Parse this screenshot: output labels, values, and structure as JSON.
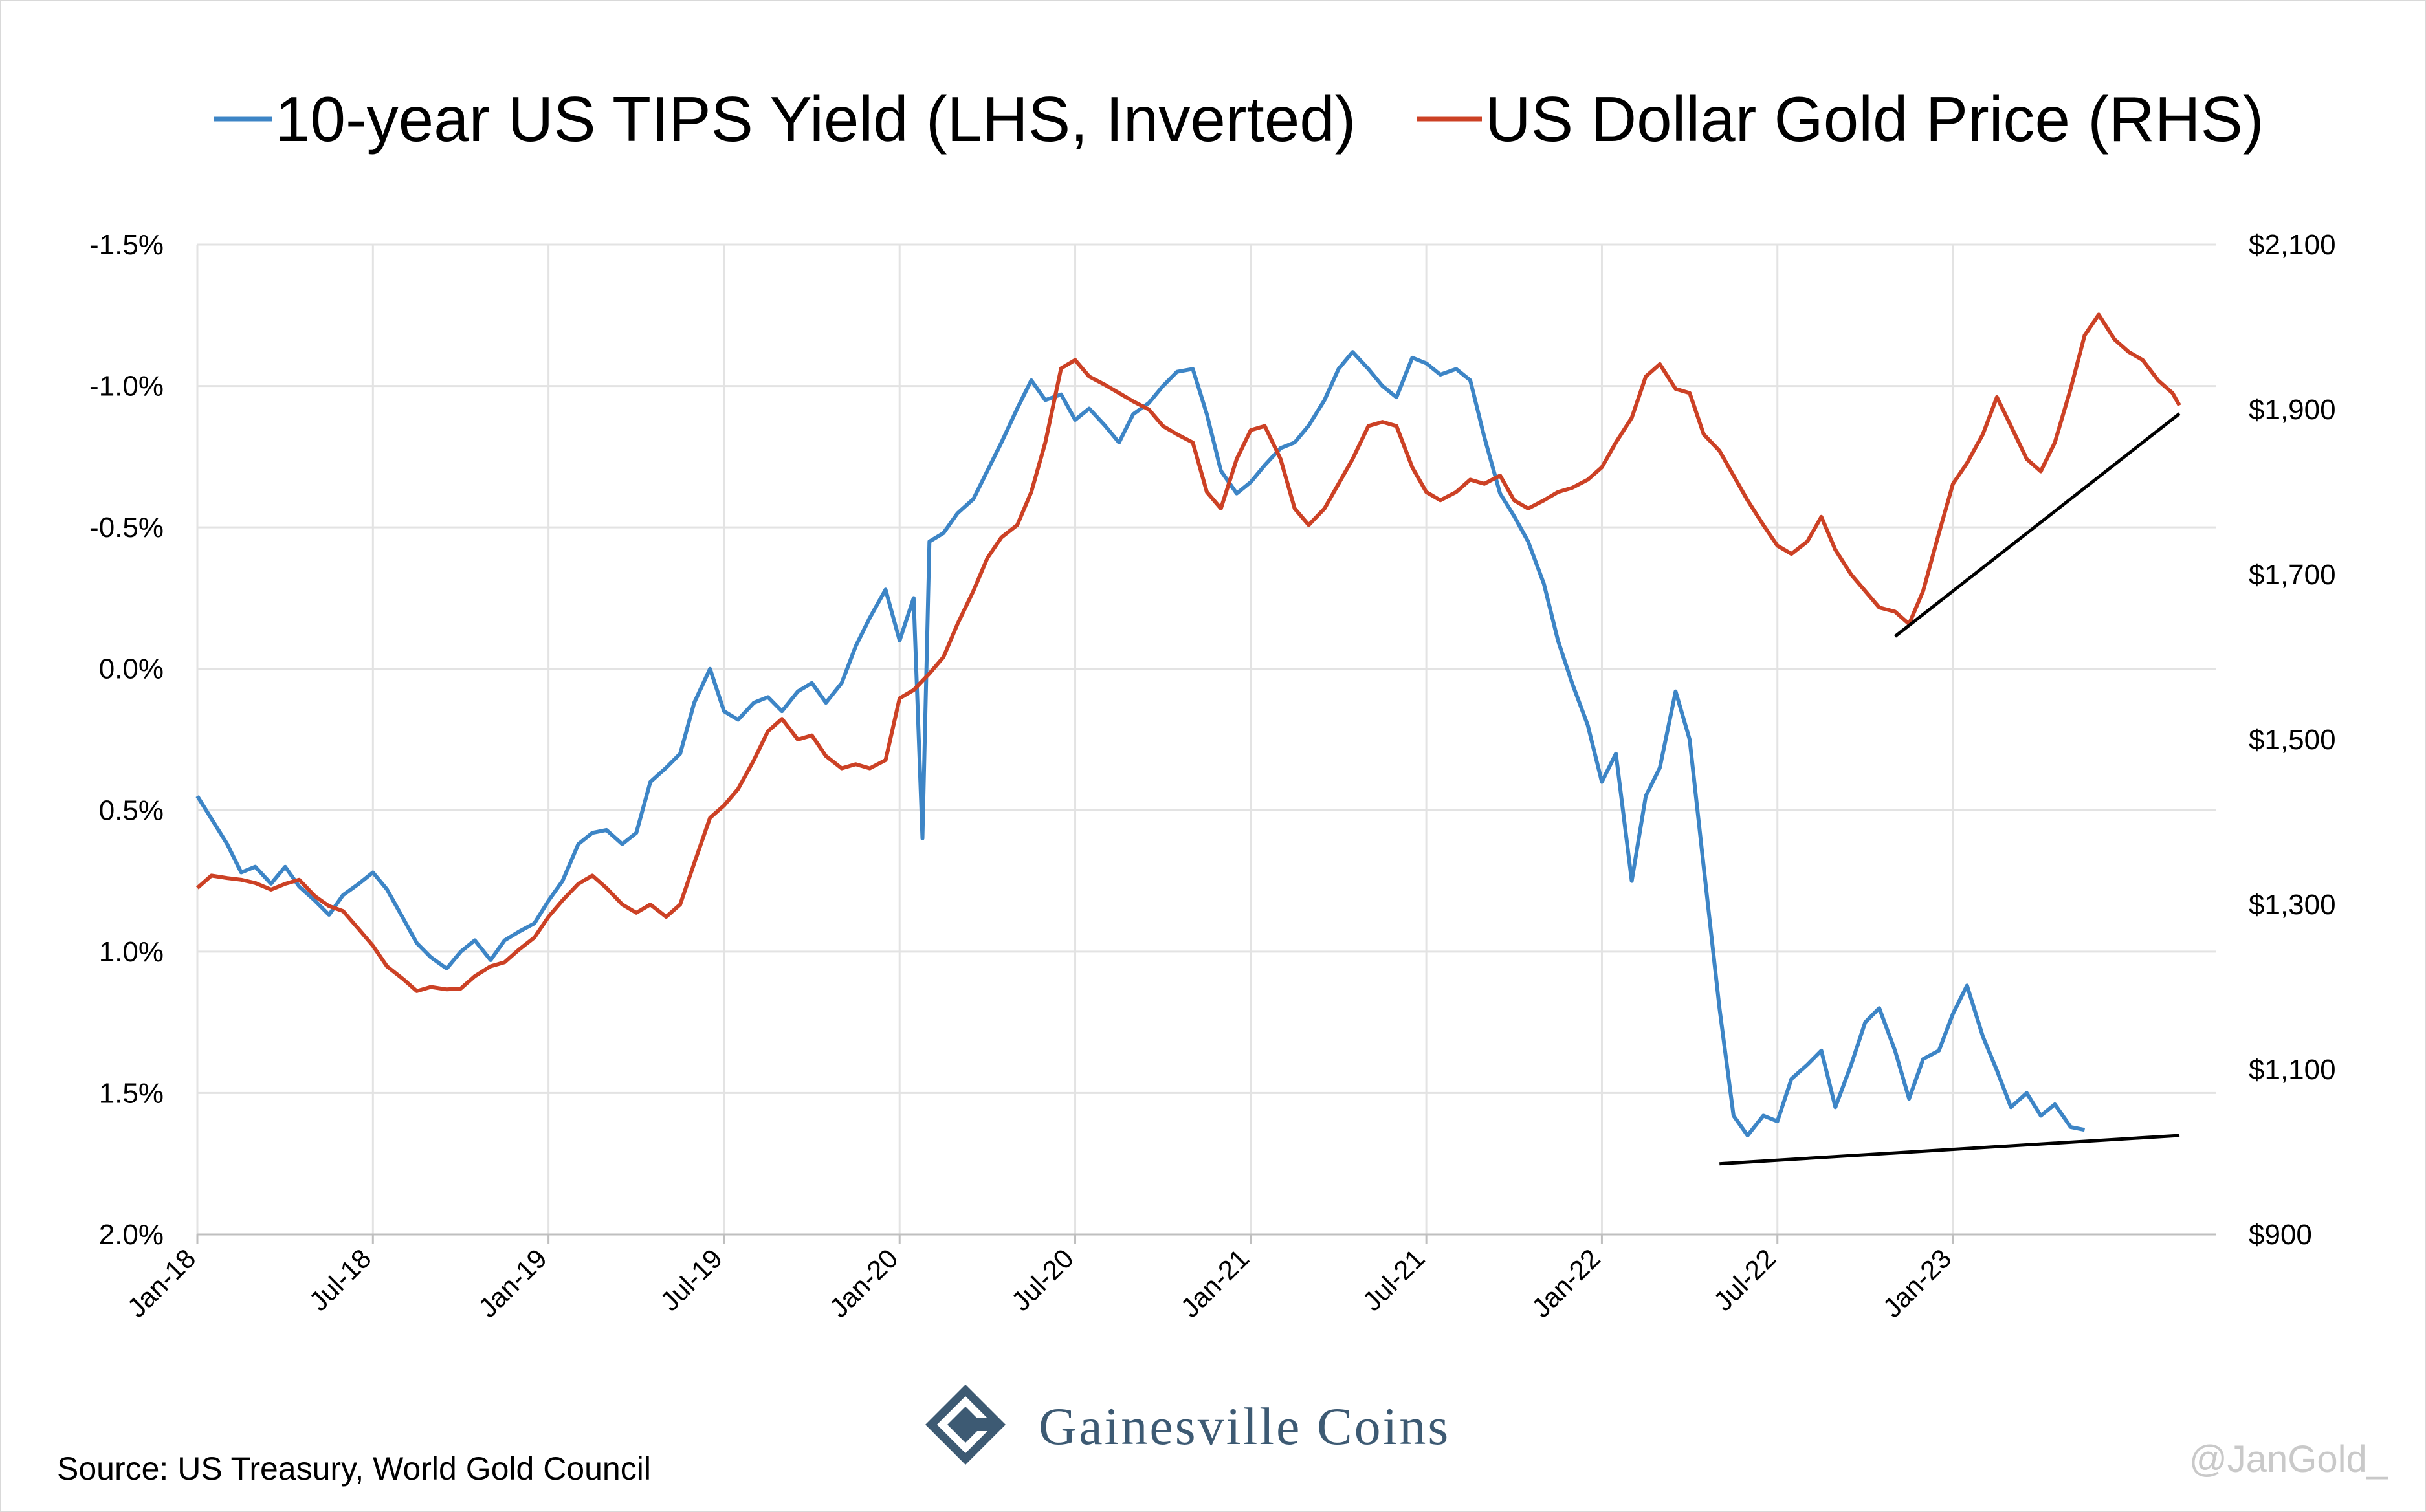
{
  "chart_data": {
    "type": "line",
    "title": "",
    "x": [
      "Jan-18",
      "Jul-18",
      "Jan-19",
      "Jul-19",
      "Jan-20",
      "Jul-20",
      "Jan-21",
      "Jul-21",
      "Jan-22",
      "Jul-22",
      "Jan-23"
    ],
    "x_tick_labels": [
      "Jan-18",
      "Jul-18",
      "Jan-19",
      "Jul-19",
      "Jan-20",
      "Jul-20",
      "Jan-21",
      "Jul-21",
      "Jan-22",
      "Jul-22",
      "Jan-23"
    ],
    "x_range": [
      "Jan-18",
      "Oct-23"
    ],
    "y_left": {
      "label": "10-year US TIPS Yield (LHS, Inverted)",
      "inverted": true,
      "ylim": [
        -1.5,
        2.0
      ],
      "tick_labels": [
        "-1.5%",
        "-1.0%",
        "-0.5%",
        "0.0%",
        "0.5%",
        "1.0%",
        "1.5%",
        "2.0%"
      ],
      "tick_values": [
        -1.5,
        -1.0,
        -0.5,
        0.0,
        0.5,
        1.0,
        1.5,
        2.0
      ]
    },
    "y_right": {
      "label": "US Dollar Gold Price (RHS)",
      "ylim": [
        900,
        2100
      ],
      "tick_labels": [
        "$2,100",
        "$1,900",
        "$1,700",
        "$1,500",
        "$1,300",
        "$1,100",
        "$900"
      ],
      "tick_values": [
        2100,
        1900,
        1700,
        1500,
        1300,
        1100,
        900
      ]
    },
    "grid": true,
    "legend_position": "top",
    "series": [
      {
        "name": "10-year US TIPS Yield (LHS, Inverted)",
        "axis": "left",
        "color": "#3d85c6",
        "points": [
          [
            0.0,
            0.45
          ],
          [
            0.08,
            0.53
          ],
          [
            0.17,
            0.62
          ],
          [
            0.25,
            0.72
          ],
          [
            0.33,
            0.7
          ],
          [
            0.42,
            0.76
          ],
          [
            0.5,
            0.7
          ],
          [
            0.58,
            0.77
          ],
          [
            0.67,
            0.82
          ],
          [
            0.75,
            0.87
          ],
          [
            0.83,
            0.8
          ],
          [
            0.92,
            0.76
          ],
          [
            1.0,
            0.72
          ],
          [
            1.08,
            0.78
          ],
          [
            1.17,
            0.88
          ],
          [
            1.25,
            0.97
          ],
          [
            1.33,
            1.02
          ],
          [
            1.42,
            1.06
          ],
          [
            1.5,
            1.0
          ],
          [
            1.58,
            0.96
          ],
          [
            1.67,
            1.03
          ],
          [
            1.75,
            0.96
          ],
          [
            1.83,
            0.93
          ],
          [
            1.92,
            0.9
          ],
          [
            2.0,
            0.82
          ],
          [
            2.08,
            0.75
          ],
          [
            2.17,
            0.62
          ],
          [
            2.25,
            0.58
          ],
          [
            2.33,
            0.57
          ],
          [
            2.42,
            0.62
          ],
          [
            2.5,
            0.58
          ],
          [
            2.58,
            0.4
          ],
          [
            2.67,
            0.35
          ],
          [
            2.75,
            0.3
          ],
          [
            2.83,
            0.12
          ],
          [
            2.92,
            0.0
          ],
          [
            3.0,
            0.15
          ],
          [
            3.08,
            0.18
          ],
          [
            3.17,
            0.12
          ],
          [
            3.25,
            0.1
          ],
          [
            3.33,
            0.15
          ],
          [
            3.42,
            0.08
          ],
          [
            3.5,
            0.05
          ],
          [
            3.58,
            0.12
          ],
          [
            3.67,
            0.05
          ],
          [
            3.75,
            -0.08
          ],
          [
            3.83,
            -0.18
          ],
          [
            3.92,
            -0.28
          ],
          [
            4.0,
            -0.1
          ],
          [
            4.08,
            -0.25
          ],
          [
            4.13,
            0.6
          ],
          [
            4.17,
            -0.45
          ],
          [
            4.25,
            -0.48
          ],
          [
            4.33,
            -0.55
          ],
          [
            4.42,
            -0.6
          ],
          [
            4.5,
            -0.7
          ],
          [
            4.58,
            -0.8
          ],
          [
            4.67,
            -0.92
          ],
          [
            4.75,
            -1.02
          ],
          [
            4.83,
            -0.95
          ],
          [
            4.92,
            -0.97
          ],
          [
            5.0,
            -0.88
          ],
          [
            5.08,
            -0.92
          ],
          [
            5.17,
            -0.86
          ],
          [
            5.25,
            -0.8
          ],
          [
            5.33,
            -0.9
          ],
          [
            5.42,
            -0.94
          ],
          [
            5.5,
            -1.0
          ],
          [
            5.58,
            -1.05
          ],
          [
            5.67,
            -1.06
          ],
          [
            5.75,
            -0.9
          ],
          [
            5.83,
            -0.7
          ],
          [
            5.92,
            -0.62
          ],
          [
            6.0,
            -0.66
          ],
          [
            6.08,
            -0.72
          ],
          [
            6.17,
            -0.78
          ],
          [
            6.25,
            -0.8
          ],
          [
            6.33,
            -0.86
          ],
          [
            6.42,
            -0.95
          ],
          [
            6.5,
            -1.06
          ],
          [
            6.58,
            -1.12
          ],
          [
            6.67,
            -1.06
          ],
          [
            6.75,
            -1.0
          ],
          [
            6.83,
            -0.96
          ],
          [
            6.92,
            -1.1
          ],
          [
            7.0,
            -1.08
          ],
          [
            7.08,
            -1.04
          ],
          [
            7.17,
            -1.06
          ],
          [
            7.25,
            -1.02
          ],
          [
            7.33,
            -0.82
          ],
          [
            7.42,
            -0.62
          ],
          [
            7.5,
            -0.54
          ],
          [
            7.58,
            -0.45
          ],
          [
            7.67,
            -0.3
          ],
          [
            7.75,
            -0.1
          ],
          [
            7.83,
            0.05
          ],
          [
            7.92,
            0.2
          ],
          [
            8.0,
            0.4
          ],
          [
            8.08,
            0.3
          ],
          [
            8.17,
            0.75
          ],
          [
            8.25,
            0.45
          ],
          [
            8.33,
            0.35
          ],
          [
            8.42,
            0.08
          ],
          [
            8.5,
            0.25
          ],
          [
            8.58,
            0.7
          ],
          [
            8.67,
            1.2
          ],
          [
            8.75,
            1.58
          ],
          [
            8.83,
            1.65
          ],
          [
            8.92,
            1.58
          ],
          [
            9.0,
            1.6
          ],
          [
            9.08,
            1.45
          ],
          [
            9.17,
            1.4
          ],
          [
            9.25,
            1.35
          ],
          [
            9.33,
            1.55
          ],
          [
            9.42,
            1.4
          ],
          [
            9.5,
            1.25
          ],
          [
            9.58,
            1.2
          ],
          [
            9.67,
            1.35
          ],
          [
            9.75,
            1.52
          ],
          [
            9.83,
            1.38
          ],
          [
            9.92,
            1.35
          ],
          [
            10.0,
            1.22
          ],
          [
            10.08,
            1.12
          ],
          [
            10.17,
            1.3
          ],
          [
            10.25,
            1.42
          ],
          [
            10.33,
            1.55
          ],
          [
            10.42,
            1.5
          ],
          [
            10.5,
            1.58
          ],
          [
            10.58,
            1.54
          ],
          [
            10.67,
            1.62
          ],
          [
            10.75,
            1.63
          ]
        ]
      },
      {
        "name": "US Dollar Gold Price (RHS)",
        "axis": "right",
        "color": "#cc4125",
        "points": [
          [
            0.0,
            1320
          ],
          [
            0.08,
            1335
          ],
          [
            0.17,
            1332
          ],
          [
            0.25,
            1330
          ],
          [
            0.33,
            1326
          ],
          [
            0.42,
            1318
          ],
          [
            0.5,
            1325
          ],
          [
            0.58,
            1330
          ],
          [
            0.67,
            1310
          ],
          [
            0.75,
            1298
          ],
          [
            0.83,
            1292
          ],
          [
            0.92,
            1270
          ],
          [
            1.0,
            1250
          ],
          [
            1.08,
            1225
          ],
          [
            1.17,
            1210
          ],
          [
            1.25,
            1195
          ],
          [
            1.33,
            1200
          ],
          [
            1.42,
            1197
          ],
          [
            1.5,
            1198
          ],
          [
            1.58,
            1213
          ],
          [
            1.67,
            1225
          ],
          [
            1.75,
            1230
          ],
          [
            1.83,
            1245
          ],
          [
            1.92,
            1260
          ],
          [
            2.0,
            1285
          ],
          [
            2.08,
            1305
          ],
          [
            2.17,
            1325
          ],
          [
            2.25,
            1335
          ],
          [
            2.33,
            1320
          ],
          [
            2.42,
            1300
          ],
          [
            2.5,
            1290
          ],
          [
            2.58,
            1300
          ],
          [
            2.67,
            1285
          ],
          [
            2.75,
            1300
          ],
          [
            2.83,
            1350
          ],
          [
            2.92,
            1405
          ],
          [
            3.0,
            1420
          ],
          [
            3.08,
            1440
          ],
          [
            3.17,
            1475
          ],
          [
            3.25,
            1510
          ],
          [
            3.33,
            1525
          ],
          [
            3.42,
            1500
          ],
          [
            3.5,
            1505
          ],
          [
            3.58,
            1480
          ],
          [
            3.67,
            1465
          ],
          [
            3.75,
            1470
          ],
          [
            3.83,
            1465
          ],
          [
            3.92,
            1475
          ],
          [
            4.0,
            1550
          ],
          [
            4.08,
            1560
          ],
          [
            4.17,
            1580
          ],
          [
            4.25,
            1600
          ],
          [
            4.33,
            1640
          ],
          [
            4.42,
            1680
          ],
          [
            4.5,
            1720
          ],
          [
            4.58,
            1745
          ],
          [
            4.67,
            1760
          ],
          [
            4.75,
            1800
          ],
          [
            4.83,
            1860
          ],
          [
            4.92,
            1950
          ],
          [
            5.0,
            1960
          ],
          [
            5.08,
            1940
          ],
          [
            5.17,
            1930
          ],
          [
            5.25,
            1920
          ],
          [
            5.33,
            1910
          ],
          [
            5.42,
            1900
          ],
          [
            5.5,
            1880
          ],
          [
            5.58,
            1870
          ],
          [
            5.67,
            1860
          ],
          [
            5.75,
            1800
          ],
          [
            5.83,
            1780
          ],
          [
            5.92,
            1840
          ],
          [
            6.0,
            1875
          ],
          [
            6.08,
            1880
          ],
          [
            6.17,
            1840
          ],
          [
            6.25,
            1780
          ],
          [
            6.33,
            1760
          ],
          [
            6.42,
            1780
          ],
          [
            6.5,
            1810
          ],
          [
            6.58,
            1840
          ],
          [
            6.67,
            1880
          ],
          [
            6.75,
            1885
          ],
          [
            6.83,
            1880
          ],
          [
            6.92,
            1830
          ],
          [
            7.0,
            1800
          ],
          [
            7.08,
            1790
          ],
          [
            7.17,
            1800
          ],
          [
            7.25,
            1815
          ],
          [
            7.33,
            1810
          ],
          [
            7.42,
            1820
          ],
          [
            7.5,
            1790
          ],
          [
            7.58,
            1780
          ],
          [
            7.67,
            1790
          ],
          [
            7.75,
            1800
          ],
          [
            7.83,
            1805
          ],
          [
            7.92,
            1815
          ],
          [
            8.0,
            1830
          ],
          [
            8.08,
            1860
          ],
          [
            8.17,
            1890
          ],
          [
            8.25,
            1940
          ],
          [
            8.33,
            1955
          ],
          [
            8.42,
            1925
          ],
          [
            8.5,
            1920
          ],
          [
            8.58,
            1870
          ],
          [
            8.67,
            1850
          ],
          [
            8.75,
            1820
          ],
          [
            8.83,
            1790
          ],
          [
            8.92,
            1760
          ],
          [
            9.0,
            1735
          ],
          [
            9.08,
            1725
          ],
          [
            9.17,
            1740
          ],
          [
            9.25,
            1770
          ],
          [
            9.33,
            1730
          ],
          [
            9.42,
            1700
          ],
          [
            9.5,
            1680
          ],
          [
            9.58,
            1660
          ],
          [
            9.67,
            1655
          ],
          [
            9.75,
            1640
          ],
          [
            9.83,
            1680
          ],
          [
            9.92,
            1750
          ],
          [
            10.0,
            1810
          ],
          [
            10.08,
            1835
          ],
          [
            10.17,
            1870
          ],
          [
            10.25,
            1915
          ],
          [
            10.33,
            1880
          ],
          [
            10.42,
            1840
          ],
          [
            10.5,
            1825
          ],
          [
            10.58,
            1860
          ],
          [
            10.67,
            1925
          ],
          [
            10.75,
            1990
          ],
          [
            10.83,
            2015
          ],
          [
            10.92,
            1985
          ],
          [
            11.0,
            1970
          ],
          [
            11.08,
            1960
          ],
          [
            11.17,
            1935
          ],
          [
            11.25,
            1920
          ],
          [
            11.29,
            1905
          ]
        ]
      }
    ],
    "annotations": [
      {
        "type": "trendline",
        "axis": "right",
        "from": [
          9.67,
          1625
        ],
        "to": [
          11.29,
          1895
        ]
      },
      {
        "type": "trendline",
        "axis": "left",
        "from": [
          8.67,
          1.75
        ],
        "to": [
          11.29,
          1.65
        ]
      }
    ]
  },
  "colors": {
    "tips": "#3d85c6",
    "gold": "#cc4125",
    "grid": "#e3e3e3",
    "brand": "#3d5a73"
  },
  "footer": {
    "source": "Source: US Treasury, World Gold Council",
    "brand_name": "Gainesville Coins",
    "handle": "@JanGold_"
  }
}
